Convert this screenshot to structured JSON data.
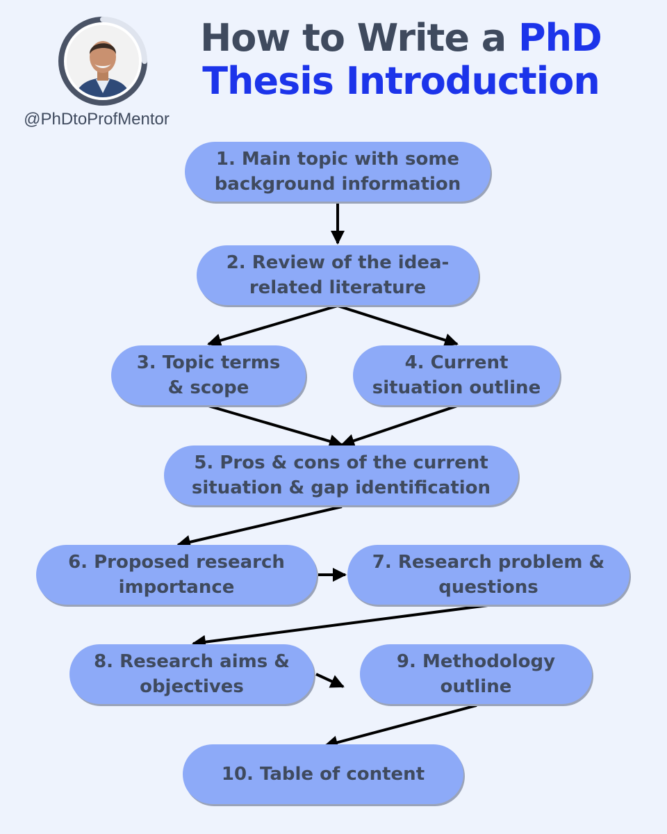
{
  "header": {
    "title_part1": "How to Write a ",
    "title_accent1": "PhD",
    "title_accent2": "Thesis Introduction",
    "handle": "@PhDtoProfMentor"
  },
  "steps": [
    "1. Main topic with some\nbackground information",
    "2. Review of the idea-\nrelated literature",
    "3. Topic terms\n& scope",
    "4. Current\nsituation outline",
    "5. Pros & cons of the current\nsituation & gap identification",
    "6. Proposed research\nimportance",
    "7. Research problem &\nquestions",
    "8. Research aims &\nobjectives",
    "9. Methodology\noutline",
    "10. Table of content"
  ],
  "colors": {
    "background": "#eef3fd",
    "box_fill": "#8daaf8",
    "text": "#3f4a5e",
    "accent": "#1c34ea",
    "arrow": "#000000"
  }
}
